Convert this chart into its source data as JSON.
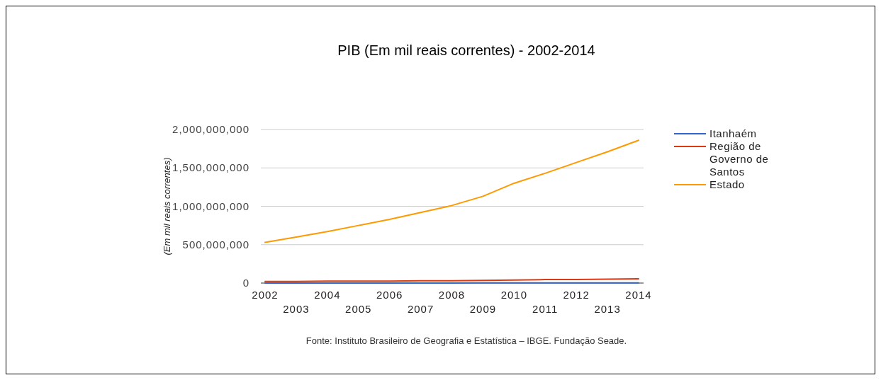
{
  "chart_data": {
    "type": "line",
    "title": "PIB (Em mil reais correntes) - 2002-2014",
    "ylabel": "(Em mil reais correntes)",
    "categories": [
      "2002",
      "2003",
      "2004",
      "2005",
      "2006",
      "2007",
      "2008",
      "2009",
      "2010",
      "2011",
      "2012",
      "2013",
      "2014"
    ],
    "series": [
      {
        "name": "Itanhaém",
        "color": "#3366cc",
        "values": [
          1000000,
          1000000,
          1000000,
          1000000,
          1000000,
          1000000,
          1000000,
          2000000,
          2000000,
          2000000,
          2000000,
          2000000,
          2000000
        ]
      },
      {
        "name": "Região de Governo de Santos",
        "color": "#dc3912",
        "values": [
          20000000,
          20000000,
          25000000,
          25000000,
          25000000,
          30000000,
          30000000,
          35000000,
          40000000,
          45000000,
          45000000,
          50000000,
          55000000
        ]
      },
      {
        "name": "Estado",
        "color": "#ff9900",
        "values": [
          530000000,
          600000000,
          670000000,
          750000000,
          830000000,
          920000000,
          1010000000,
          1130000000,
          1300000000,
          1430000000,
          1570000000,
          1710000000,
          1860000000
        ]
      }
    ],
    "ylim": [
      0,
      2000000000
    ],
    "yticks": [
      {
        "value": 0,
        "label": "0"
      },
      {
        "value": 500000000,
        "label": "500,000,000"
      },
      {
        "value": 1000000000,
        "label": "1,000,000,000"
      },
      {
        "value": 1500000000,
        "label": "1,500,000,000"
      },
      {
        "value": 2000000000,
        "label": "2,000,000,000"
      }
    ],
    "grid": "y",
    "legend": "right",
    "annotations": [
      "Fonte: Instituto Brasileiro de Geografia e Estatística – IBGE. Fundação Seade."
    ]
  }
}
